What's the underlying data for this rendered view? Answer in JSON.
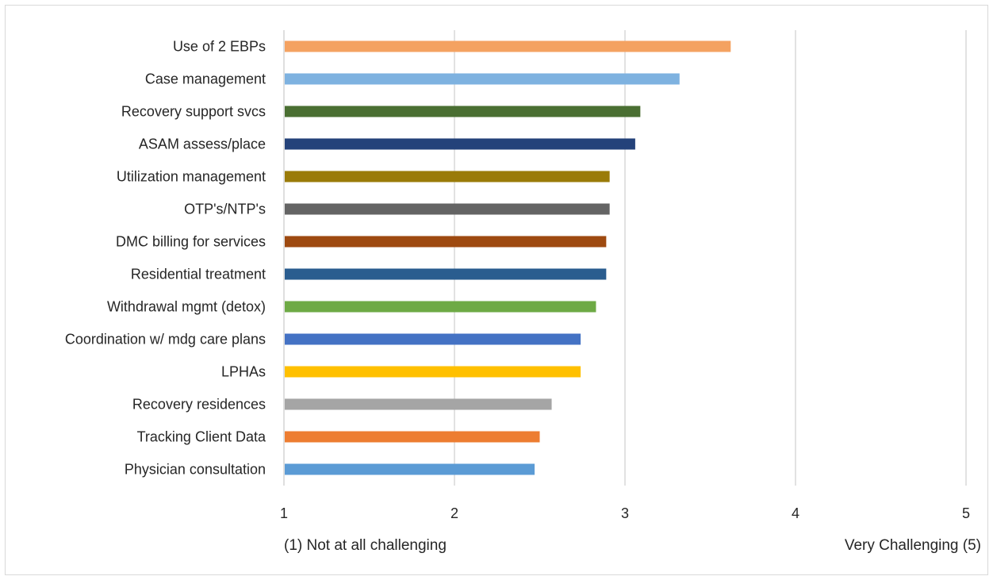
{
  "chart_data": {
    "type": "bar",
    "orientation": "horizontal",
    "categories": [
      "Use of 2 EBPs",
      "Case management",
      "Recovery support svcs",
      "ASAM assess/place",
      "Utilization management",
      "OTP's/NTP's",
      "DMC billing for services",
      "Residential treatment",
      "Withdrawal mgmt (detox)",
      "Coordination w/ mdg care plans",
      "LPHAs",
      "Recovery residences",
      "Tracking Client Data",
      "Physician consultation"
    ],
    "values": [
      3.62,
      3.32,
      3.09,
      3.06,
      2.91,
      2.91,
      2.89,
      2.89,
      2.83,
      2.74,
      2.74,
      2.57,
      2.5,
      2.47
    ],
    "colors": [
      "#F4A261",
      "#7EB2E0",
      "#4A6F32",
      "#24427A",
      "#9A7B09",
      "#646464",
      "#9E4A10",
      "#2A5D8F",
      "#6EAA45",
      "#4472C4",
      "#FFC000",
      "#A5A5A5",
      "#ED7D31",
      "#5B9BD5"
    ],
    "xlim": [
      1,
      5
    ],
    "xticks": [
      "1",
      "2",
      "3",
      "4",
      "5"
    ],
    "grid": true,
    "legend": "none",
    "anchor_left": "(1) Not at all challenging",
    "anchor_right": "Very Challenging (5)"
  }
}
